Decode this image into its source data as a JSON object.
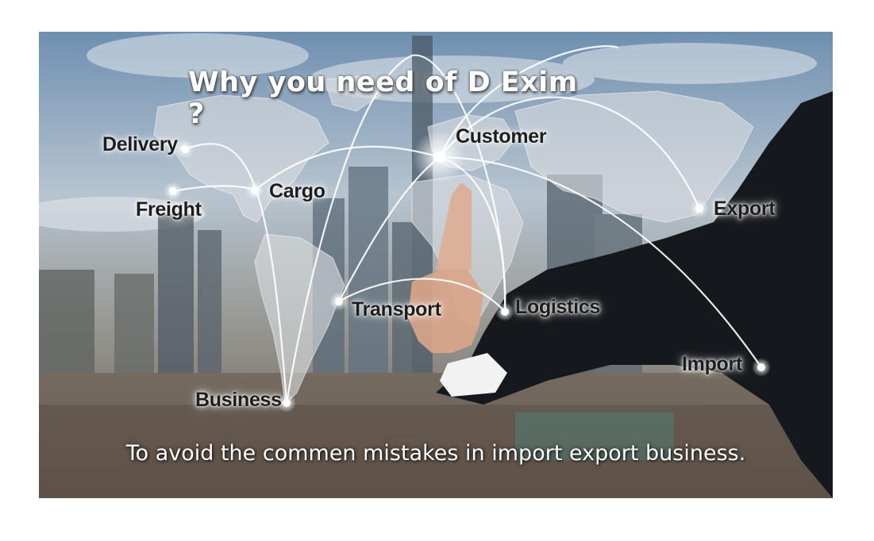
{
  "banner": {
    "headline": "Why you need of D Exim ?",
    "caption": "To avoid the commen mistakes in import export business.",
    "labels": {
      "delivery": "Delivery",
      "freight": "Freight",
      "cargo": "Cargo",
      "customer": "Customer",
      "export": "Export",
      "transport": "Transport",
      "logistics": "Logistics",
      "import": "Import",
      "business": "Business"
    },
    "colors": {
      "sky": "#7d97b3",
      "map": "#d4d8dc",
      "suit": "#15181c",
      "label_text": "#1e1e1e"
    }
  }
}
